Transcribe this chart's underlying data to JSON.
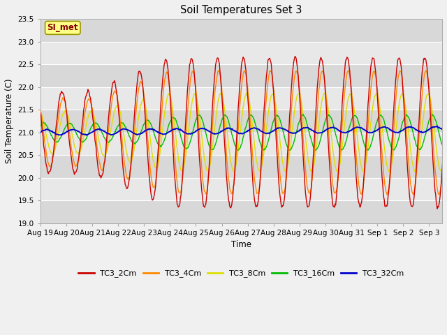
{
  "title": "Soil Temperatures Set 3",
  "xlabel": "Time",
  "ylabel": "Soil Temperature (C)",
  "ylim": [
    19.0,
    23.5
  ],
  "yticks": [
    19.0,
    19.5,
    20.0,
    20.5,
    21.0,
    21.5,
    22.0,
    22.5,
    23.0,
    23.5
  ],
  "xtick_labels": [
    "Aug 19",
    "Aug 20",
    "Aug 21",
    "Aug 22",
    "Aug 23",
    "Aug 24",
    "Aug 25",
    "Aug 26",
    "Aug 27",
    "Aug 28",
    "Aug 29",
    "Aug 30",
    "Aug 31",
    "Sep 1",
    "Sep 2",
    "Sep 3"
  ],
  "series_colors": [
    "#cc0000",
    "#ff8800",
    "#dddd00",
    "#00bb00",
    "#0000cc"
  ],
  "series_names": [
    "TC3_2Cm",
    "TC3_4Cm",
    "TC3_8Cm",
    "TC3_16Cm",
    "TC3_32Cm"
  ],
  "series_linewidths": [
    1.0,
    1.0,
    1.0,
    1.0,
    1.3
  ],
  "annotation_text": "SI_met",
  "annotation_bg": "#ffff88",
  "annotation_border": "#999900",
  "band_colors": [
    "#e8e8e8",
    "#d8d8d8"
  ],
  "plot_bg": "#e8e8e8",
  "grid_color": "#ffffff",
  "fig_bg": "#f0f0f0"
}
